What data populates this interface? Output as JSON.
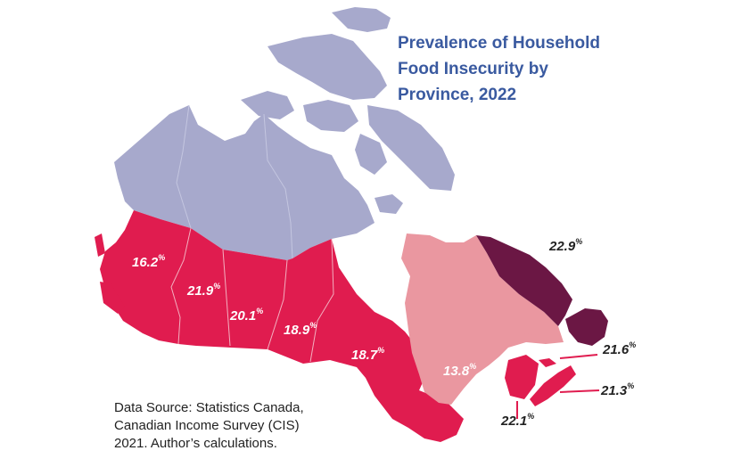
{
  "title_lines": [
    "Prevalence of Household",
    "Food Insecurity by",
    "Province, 2022"
  ],
  "source_lines": [
    "Data Source: Statistics Canada,",
    "Canadian Income Survey (CIS)",
    "2021. Author’s calculations."
  ],
  "colors": {
    "territories": "#a7a9cc",
    "high": "#e01c4f",
    "quebec": "#ea97a0",
    "newfoundland": "#6b1744",
    "borders": "#f3b0c0",
    "title": "#3a5aa0"
  },
  "regions": [
    {
      "name": "British Columbia",
      "value": "16.2",
      "unit": "%"
    },
    {
      "name": "Alberta",
      "value": "21.9",
      "unit": "%"
    },
    {
      "name": "Saskatchewan",
      "value": "20.1",
      "unit": "%"
    },
    {
      "name": "Manitoba",
      "value": "18.9",
      "unit": "%"
    },
    {
      "name": "Ontario",
      "value": "18.7",
      "unit": "%"
    },
    {
      "name": "Quebec",
      "value": "13.8",
      "unit": "%"
    },
    {
      "name": "Newfoundland and Labrador",
      "value": "22.9",
      "unit": "%"
    },
    {
      "name": "Prince Edward Island",
      "value": "21.6",
      "unit": "%"
    },
    {
      "name": "Nova Scotia",
      "value": "21.3",
      "unit": "%"
    },
    {
      "name": "New Brunswick",
      "value": "22.1",
      "unit": "%"
    }
  ]
}
